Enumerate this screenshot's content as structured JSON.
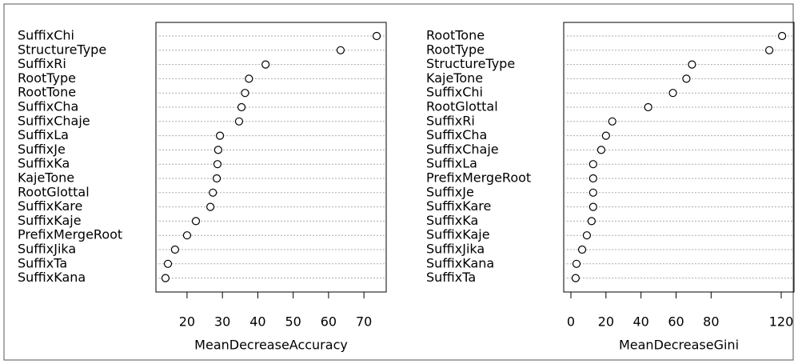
{
  "chart_data": [
    {
      "type": "dot",
      "xlabel": "MeanDecreaseAccuracy",
      "categories": [
        "SuffixChi",
        "StructureType",
        "SuffixRi",
        "RootType",
        "RootTone",
        "SuffixCha",
        "SuffixChaje",
        "SuffixLa",
        "SuffixJe",
        "SuffixKa",
        "KajeTone",
        "RootGlottal",
        "SuffixKare",
        "SuffixKaje",
        "PrefixMergeRoot",
        "SuffixJika",
        "SuffixTa",
        "SuffixKana"
      ],
      "values": [
        73.6,
        63.4,
        42.2,
        37.5,
        36.4,
        35.4,
        34.7,
        29.3,
        28.8,
        28.6,
        28.4,
        27.3,
        26.6,
        22.5,
        20,
        16.6,
        14.6,
        13.9
      ],
      "xlim": [
        11.2,
        76.3
      ],
      "xticks": [
        20,
        30,
        40,
        50,
        60,
        70
      ],
      "grid": true,
      "color": "#000000"
    },
    {
      "type": "dot",
      "xlabel": "MeanDecreaseGini",
      "categories": [
        "RootTone",
        "RootType",
        "StructureType",
        "KajeTone",
        "SuffixChi",
        "RootGlottal",
        "SuffixRi",
        "SuffixCha",
        "SuffixChaje",
        "SuffixLa",
        "PrefixMergeRoot",
        "SuffixJe",
        "SuffixKare",
        "SuffixKa",
        "SuffixKaje",
        "SuffixJika",
        "SuffixKana",
        "SuffixTa"
      ],
      "values": [
        120.5,
        113.2,
        69.1,
        65.9,
        58.2,
        44.1,
        23.6,
        20,
        17.3,
        12.7,
        12.7,
        12.7,
        12.7,
        11.8,
        9.1,
        6.4,
        3.2,
        2.7
      ],
      "xlim": [
        -4.1,
        127.3
      ],
      "xticks": [
        0,
        20,
        40,
        60,
        80,
        120
      ],
      "grid": true,
      "color": "#000000"
    }
  ]
}
